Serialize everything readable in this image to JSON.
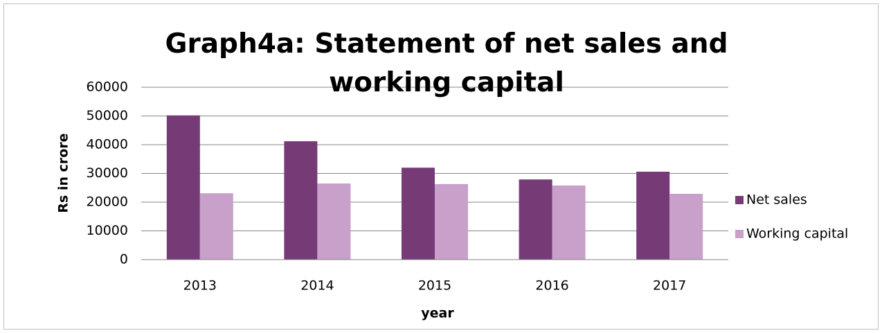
{
  "chart_data": {
    "type": "bar",
    "title": "Graph4a: Statement of net sales and working capital",
    "x_label": "year",
    "y_label": "Rs in crore",
    "categories": [
      "2013",
      "2014",
      "2015",
      "2016",
      "2017"
    ],
    "series": [
      {
        "name": "Net sales",
        "color": "#763a77",
        "values": [
          50200,
          41200,
          32000,
          27900,
          30600
        ]
      },
      {
        "name": "Working capital",
        "color": "#c8a0c9",
        "values": [
          23100,
          26500,
          26300,
          25800,
          22900
        ]
      }
    ],
    "ylim": [
      0,
      60000
    ],
    "yticks": [
      0,
      10000,
      20000,
      30000,
      40000,
      50000,
      60000
    ],
    "grid": true,
    "legend": "right"
  }
}
